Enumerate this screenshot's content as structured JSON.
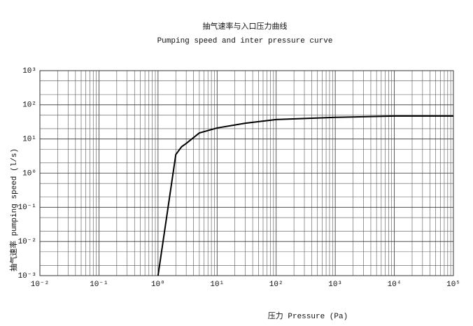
{
  "chart_data": {
    "type": "line",
    "title": "抽气速率与入口压力曲线",
    "subtitle": "Pumping speed and inter pressure curve",
    "x_label": "压力 Pressure (Pa)",
    "y_label": "抽气速率 pumping speed (l/s)",
    "x": [
      1,
      2,
      2.5,
      3,
      5,
      10,
      30,
      100,
      1000,
      10000,
      100000
    ],
    "series": [
      {
        "name": "pumping speed",
        "color": "#000000",
        "values": [
          0.001,
          3.5,
          5.9,
          7.4,
          15,
          21,
          29,
          37,
          43,
          47,
          47
        ]
      }
    ],
    "xscale": "log",
    "yscale": "log",
    "xlim": [
      0.01,
      100000
    ],
    "ylim": [
      0.001,
      1000
    ],
    "xticks": [
      {
        "value": 0.01,
        "label": "10⁻²"
      },
      {
        "value": 0.1,
        "label": "10⁻¹"
      },
      {
        "value": 1,
        "label": "10⁰"
      },
      {
        "value": 10,
        "label": "10¹"
      },
      {
        "value": 100,
        "label": "10²"
      },
      {
        "value": 1000,
        "label": "10³"
      },
      {
        "value": 10000,
        "label": "10⁴"
      },
      {
        "value": 100000,
        "label": "10⁵"
      }
    ],
    "yticks": [
      {
        "value": 0.001,
        "label": "10⁻³"
      },
      {
        "value": 0.01,
        "label": "10⁻²"
      },
      {
        "value": 0.1,
        "label": "10⁻¹"
      },
      {
        "value": 1,
        "label": "10⁰"
      },
      {
        "value": 10,
        "label": "10¹"
      },
      {
        "value": 100,
        "label": "10²"
      },
      {
        "value": 1000,
        "label": "10³"
      }
    ],
    "grid": true,
    "minor_grid": true
  }
}
